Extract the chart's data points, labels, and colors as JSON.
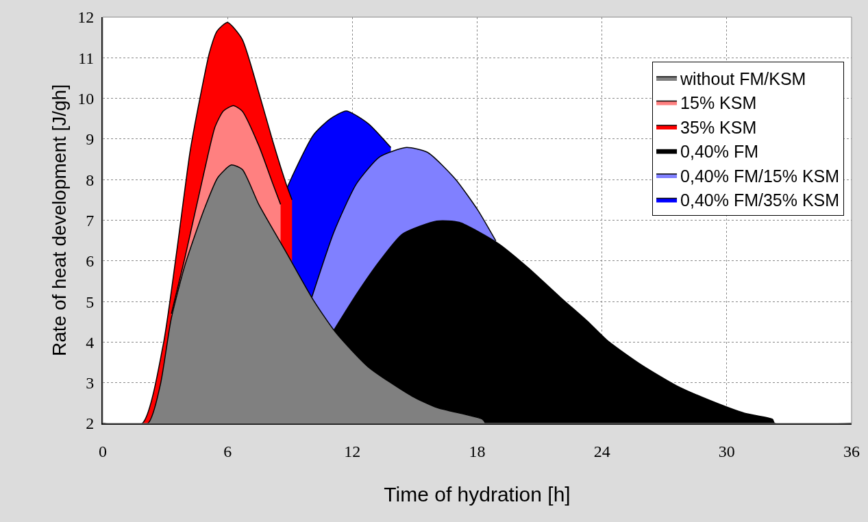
{
  "chart_data": {
    "type": "area",
    "xlabel": "Time of hydration [h]",
    "ylabel": "Rate of heat development [J/gh]",
    "xlim": [
      0,
      36
    ],
    "xticks": [
      0,
      6,
      12,
      18,
      24,
      30,
      36
    ],
    "ylim": [
      2,
      12
    ],
    "yticks": [
      2,
      3,
      4,
      5,
      6,
      7,
      8,
      9,
      10,
      11,
      12
    ],
    "grid": true,
    "legend": "top right",
    "series": [
      {
        "name": "without FM/KSM",
        "color": "#808080",
        "x": [
          0,
          2.17,
          2.76,
          3.29,
          3.95,
          4.87,
          5.53,
          6.18,
          6.71,
          7.5,
          8.82,
          10.13,
          11.18,
          12.76,
          14.87,
          16.05,
          18.26,
          18.4
        ],
        "values": [
          2,
          2,
          2.93,
          4.57,
          5.89,
          7.26,
          8.05,
          8.36,
          8.25,
          7.39,
          6.21,
          5.03,
          4.25,
          3.39,
          2.67,
          2.39,
          2.1,
          2
        ]
      },
      {
        "name": "15% KSM",
        "color": "#ff8080",
        "x": [
          3.3,
          3.95,
          4.87,
          5.4,
          5.8,
          6.28,
          6.7,
          7.5,
          8.16,
          8.55
        ],
        "values": [
          4.7,
          6.08,
          8.18,
          9.3,
          9.69,
          9.82,
          9.69,
          8.84,
          7.92,
          7.39
        ]
      },
      {
        "name": "35% KSM",
        "color": "#ff0000",
        "x": [
          0,
          1.9,
          2.9,
          3.55,
          4.2,
          4.67,
          5.13,
          5.5,
          6.0,
          6.7,
          7.5,
          8.16,
          8.8,
          9.1
        ],
        "values": [
          2,
          2,
          3.92,
          6.21,
          8.7,
          10.0,
          11.13,
          11.66,
          11.87,
          11.46,
          10.15,
          8.97,
          7.92,
          7.5
        ]
      },
      {
        "name": "0,40% FM",
        "color": "#000000",
        "x": [
          11.12,
          12.2,
          13.32,
          14.41,
          16.05,
          17.14,
          19.01,
          20.43,
          22.07,
          23.29,
          24.28,
          25.92,
          27.57,
          29.21,
          30.86,
          32.2,
          32.3,
          36
        ],
        "values": [
          4.3,
          5.18,
          6.0,
          6.66,
          6.98,
          6.95,
          6.43,
          5.84,
          5.07,
          4.52,
          4.03,
          3.43,
          2.93,
          2.56,
          2.25,
          2.1,
          2,
          2
        ]
      },
      {
        "name": "0,40% FM/15% KSM",
        "color": "#8080ff",
        "x": [
          10.03,
          11.12,
          12.2,
          13.32,
          14.6,
          15.62,
          16.94,
          18.03,
          18.9
        ],
        "values": [
          5.07,
          6.72,
          7.9,
          8.56,
          8.79,
          8.67,
          8.02,
          7.25,
          6.49
        ]
      },
      {
        "name": "0,40% FM/35% KSM",
        "color": "#0000ff",
        "x": [
          8.1,
          9.08,
          10.13,
          10.92,
          11.71,
          12.76,
          13.85
        ],
        "values": [
          6.87,
          8.05,
          9.1,
          9.49,
          9.69,
          9.38,
          8.79
        ]
      }
    ]
  }
}
